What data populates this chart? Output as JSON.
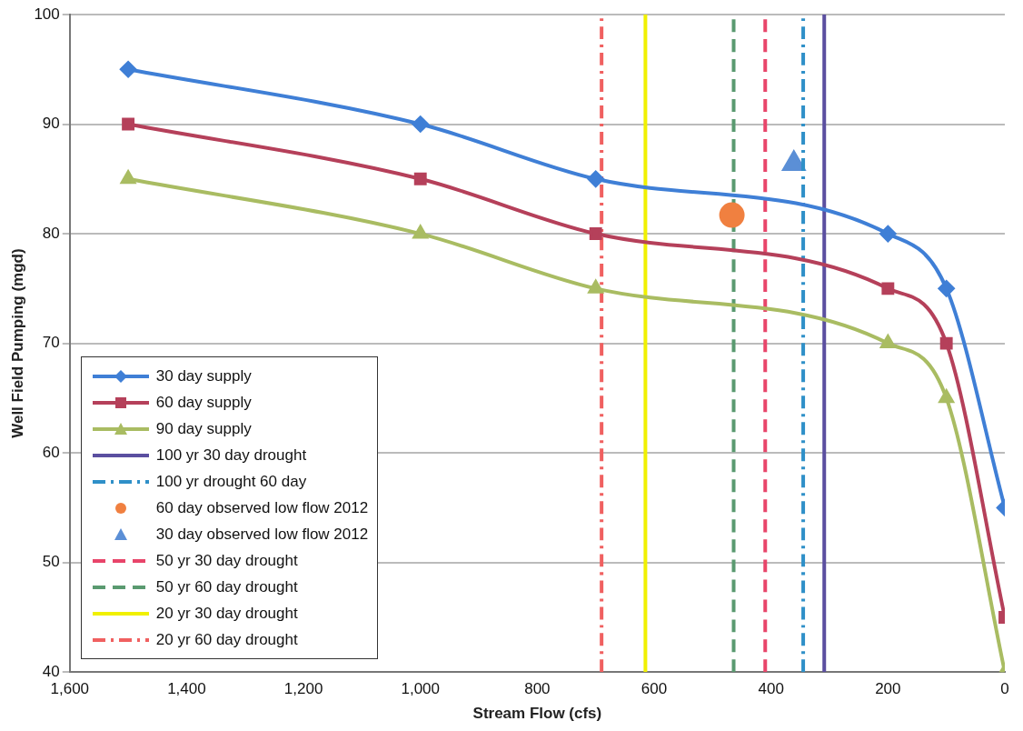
{
  "chart_data": {
    "type": "line",
    "xlabel": "Stream Flow (cfs)",
    "ylabel": "Well Field Pumping (mgd)",
    "x": [
      1500,
      1000,
      700,
      200,
      100,
      0
    ],
    "series": [
      {
        "name": "30 day supply",
        "color": "#3f7fd6",
        "marker": "diamond",
        "values": [
          95,
          90,
          85,
          80,
          75,
          55
        ]
      },
      {
        "name": "60 day supply",
        "color": "#b5405a",
        "marker": "square",
        "values": [
          90,
          85,
          80,
          75,
          70,
          45
        ]
      },
      {
        "name": "90 day supply",
        "color": "#a9bc62",
        "marker": "triangle",
        "values": [
          85,
          80,
          75,
          70,
          65,
          40
        ]
      },
      {
        "name": "100 yr 30 day drought",
        "color": "#5b4fa0",
        "marker": "none",
        "line_style": "solid",
        "x": [
          309,
          309
        ],
        "values": [
          40,
          100
        ]
      },
      {
        "name": "100 yr drought 60 day",
        "color": "#2f90c8",
        "marker": "none",
        "line_style": "dashdot",
        "x": [
          345,
          345
        ],
        "values": [
          40,
          100
        ]
      },
      {
        "name": "60 day observed low flow 2012",
        "type": "scatter",
        "color": "#f08040",
        "marker": "circle",
        "x": [
          467
        ],
        "values": [
          81.7
        ]
      },
      {
        "name": "30 day observed low flow 2012",
        "type": "scatter",
        "color": "#5b8fd6",
        "marker": "triangle",
        "x": [
          361
        ],
        "values": [
          86.4
        ]
      },
      {
        "name": "50 yr 30 day drought",
        "color": "#e8456a",
        "marker": "none",
        "line_style": "dashed",
        "x": [
          410,
          410
        ],
        "values": [
          40,
          100
        ]
      },
      {
        "name": "50 yr 60 day drought",
        "color": "#5a9a70",
        "marker": "none",
        "line_style": "dashed",
        "x": [
          464,
          464
        ],
        "values": [
          40,
          100
        ]
      },
      {
        "name": "20 yr 30 day drought",
        "color": "#f0f000",
        "marker": "none",
        "line_style": "solid",
        "x": [
          615,
          615
        ],
        "values": [
          40,
          100
        ]
      },
      {
        "name": "20 yr 60 day drought",
        "color": "#f06060",
        "marker": "none",
        "line_style": "dashdot",
        "x": [
          690,
          690
        ],
        "values": [
          40,
          100
        ]
      }
    ],
    "xlim": [
      1600,
      0
    ],
    "xticks": [
      {
        "value": 1600,
        "label": "1,600"
      },
      {
        "value": 1400,
        "label": "1,400"
      },
      {
        "value": 1200,
        "label": "1,200"
      },
      {
        "value": 1000,
        "label": "1,000"
      },
      800,
      600,
      400,
      200,
      0
    ],
    "ylim": [
      40,
      100
    ],
    "yticks": [
      40,
      50,
      60,
      70,
      80,
      90,
      100
    ],
    "grid": "y",
    "legend": "bottom left"
  }
}
